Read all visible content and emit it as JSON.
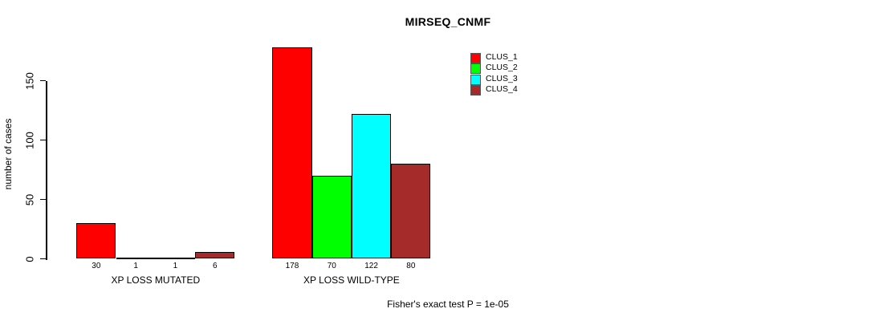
{
  "chart_data": {
    "type": "bar",
    "title": "MIRSEQ_CNMF",
    "ylabel": "number of cases",
    "xlabel": "",
    "y_ticks": [
      0,
      50,
      100,
      150
    ],
    "ylim": [
      0,
      178
    ],
    "grid": false,
    "legend_position": "top-right",
    "series": [
      {
        "name": "CLUS_1",
        "color": "#FF0000"
      },
      {
        "name": "CLUS_2",
        "color": "#00FF00"
      },
      {
        "name": "CLUS_3",
        "color": "#00FFFF"
      },
      {
        "name": "CLUS_4",
        "color": "#A52A2A"
      }
    ],
    "groups": [
      {
        "label": "XP LOSS MUTATED",
        "values": [
          30,
          1,
          1,
          6
        ]
      },
      {
        "label": "XP LOSS WILD-TYPE",
        "values": [
          178,
          70,
          122,
          80
        ]
      }
    ],
    "annotation": "Fisher's exact test P = 1e-05"
  }
}
